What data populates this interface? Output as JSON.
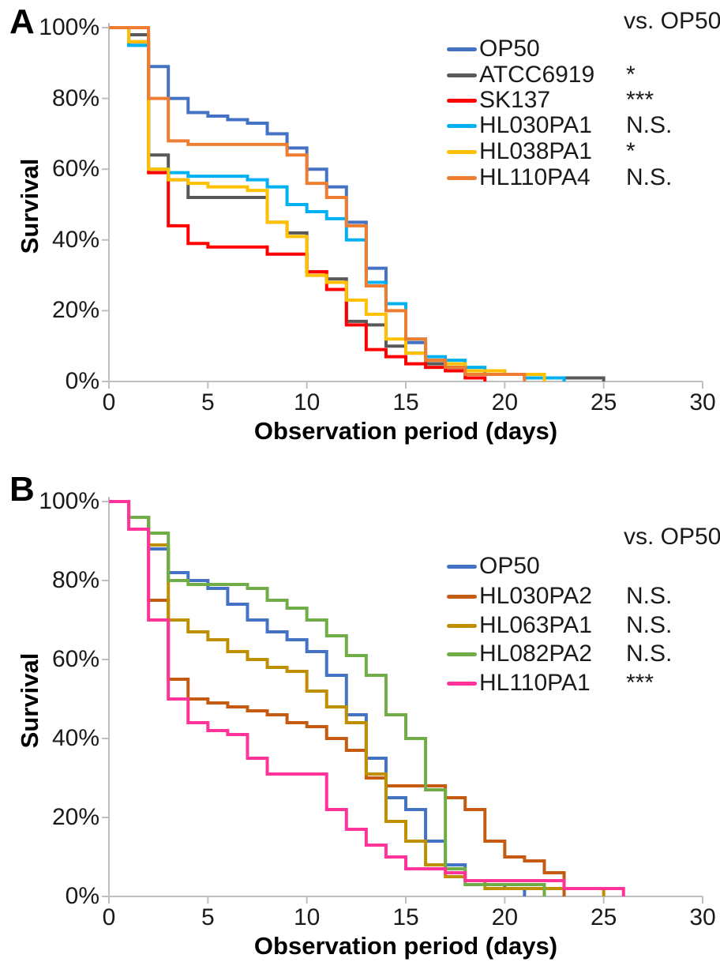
{
  "figure": {
    "background": "#ffffff"
  },
  "panels": [
    {
      "letter": "A",
      "y_axis_title": "Survival",
      "x_axis_title": "Observation period (days)",
      "comparison_header": "vs. OP50",
      "y_tick_labels": [
        "0%",
        "20%",
        "40%",
        "60%",
        "80%",
        "100%"
      ],
      "x_tick_labels": [
        "0",
        "5",
        "10",
        "15",
        "20",
        "25",
        "30"
      ]
    },
    {
      "letter": "B",
      "y_axis_title": "Survival",
      "x_axis_title": "Observation period (days)",
      "comparison_header": "vs. OP50",
      "y_tick_labels": [
        "0%",
        "20%",
        "40%",
        "60%",
        "80%",
        "100%"
      ],
      "x_tick_labels": [
        "0",
        "5",
        "10",
        "15",
        "20",
        "25",
        "30"
      ]
    }
  ],
  "chart_data": [
    {
      "type": "line",
      "subtype": "kaplan-meier-step",
      "panel": "A",
      "title": "",
      "xlabel": "Observation period (days)",
      "ylabel": "Survival",
      "xlim": [
        0,
        30
      ],
      "ylim": [
        0,
        100
      ],
      "y_unit": "percent",
      "x_tick_interval": 5,
      "y_tick_interval": 20,
      "grid": false,
      "legend_position": "top-right",
      "comparison_header": "vs. OP50",
      "axis_color": "#BFBFBF",
      "series": [
        {
          "name": "OP50",
          "color": "#4472C4",
          "significance_vs_op50": "",
          "survival_pct_by_day": [
            100,
            95,
            89,
            80,
            76,
            75,
            74,
            73,
            70,
            66,
            60,
            55,
            45,
            32,
            22,
            11,
            6,
            4,
            3,
            2,
            2,
            1,
            0
          ]
        },
        {
          "name": "ATCC6919",
          "color": "#595959",
          "significance_vs_op50": "*",
          "survival_pct_by_day": [
            100,
            98,
            64,
            57,
            52,
            52,
            52,
            52,
            45,
            42,
            31,
            29,
            17,
            16,
            10,
            8,
            5,
            4,
            2,
            2,
            2,
            1,
            1,
            1,
            1,
            0
          ]
        },
        {
          "name": "SK137",
          "color": "#FF0000",
          "significance_vs_op50": "***",
          "survival_pct_by_day": [
            100,
            96,
            59,
            44,
            39,
            38,
            38,
            38,
            36,
            36,
            31,
            26,
            16,
            9,
            7,
            5,
            4,
            3,
            1,
            0
          ]
        },
        {
          "name": "HL030PA1",
          "color": "#00B0F0",
          "significance_vs_op50": "N.S.",
          "survival_pct_by_day": [
            100,
            95,
            60,
            59,
            58,
            58,
            58,
            57,
            55,
            50,
            48,
            46,
            40,
            28,
            22,
            12,
            7,
            6,
            4,
            3,
            2,
            1,
            1,
            0
          ]
        },
        {
          "name": "HL038PA1",
          "color": "#FFC000",
          "significance_vs_op50": "*",
          "survival_pct_by_day": [
            100,
            96,
            60,
            57,
            56,
            55,
            55,
            54,
            45,
            41,
            30,
            28,
            23,
            19,
            12,
            8,
            6,
            5,
            3,
            3,
            2,
            2,
            0
          ]
        },
        {
          "name": "HL110PA4",
          "color": "#ED7D31",
          "significance_vs_op50": "N.S.",
          "survival_pct_by_day": [
            100,
            100,
            80,
            68,
            67,
            67,
            67,
            67,
            67,
            64,
            56,
            52,
            44,
            27,
            20,
            12,
            6,
            4,
            2,
            2,
            2,
            0
          ]
        }
      ]
    },
    {
      "type": "line",
      "subtype": "kaplan-meier-step",
      "panel": "B",
      "title": "",
      "xlabel": "Observation period (days)",
      "ylabel": "Survival",
      "xlim": [
        0,
        30
      ],
      "ylim": [
        0,
        100
      ],
      "y_unit": "percent",
      "x_tick_interval": 5,
      "y_tick_interval": 20,
      "grid": false,
      "legend_position": "top-right",
      "comparison_header": "vs. OP50",
      "axis_color": "#BFBFBF",
      "series": [
        {
          "name": "OP50",
          "color": "#4472C4",
          "significance_vs_op50": "",
          "survival_pct_by_day": [
            100,
            96,
            88,
            82,
            80,
            78,
            74,
            70,
            67,
            65,
            62,
            56,
            46,
            35,
            25,
            22,
            14,
            8,
            4,
            3,
            2,
            0
          ]
        },
        {
          "name": "HL030PA2",
          "color": "#C55A11",
          "significance_vs_op50": "N.S.",
          "survival_pct_by_day": [
            100,
            96,
            75,
            55,
            50,
            49,
            48,
            47,
            46,
            44,
            43,
            40,
            37,
            30,
            28,
            28,
            28,
            25,
            22,
            14,
            10,
            9,
            6,
            0
          ]
        },
        {
          "name": "HL063PA1",
          "color": "#BF8F00",
          "significance_vs_op50": "N.S.",
          "survival_pct_by_day": [
            100,
            96,
            89,
            70,
            67,
            65,
            62,
            60,
            58,
            57,
            52,
            48,
            44,
            31,
            19,
            14,
            8,
            5,
            4,
            2,
            2,
            2,
            2,
            2,
            2,
            0
          ]
        },
        {
          "name": "HL082PA2",
          "color": "#70AD47",
          "significance_vs_op50": "N.S.",
          "survival_pct_by_day": [
            100,
            96,
            92,
            80,
            79,
            79,
            79,
            78,
            75,
            73,
            70,
            66,
            61,
            56,
            46,
            40,
            27,
            7,
            3,
            3,
            3,
            3,
            0
          ]
        },
        {
          "name": "HL110PA1",
          "color": "#FF3399",
          "significance_vs_op50": "***",
          "survival_pct_by_day": [
            100,
            93,
            70,
            50,
            44,
            42,
            41,
            35,
            31,
            31,
            31,
            22,
            17,
            13,
            10,
            7,
            7,
            6,
            4,
            4,
            4,
            4,
            4,
            2,
            2,
            2,
            0
          ]
        }
      ]
    }
  ]
}
